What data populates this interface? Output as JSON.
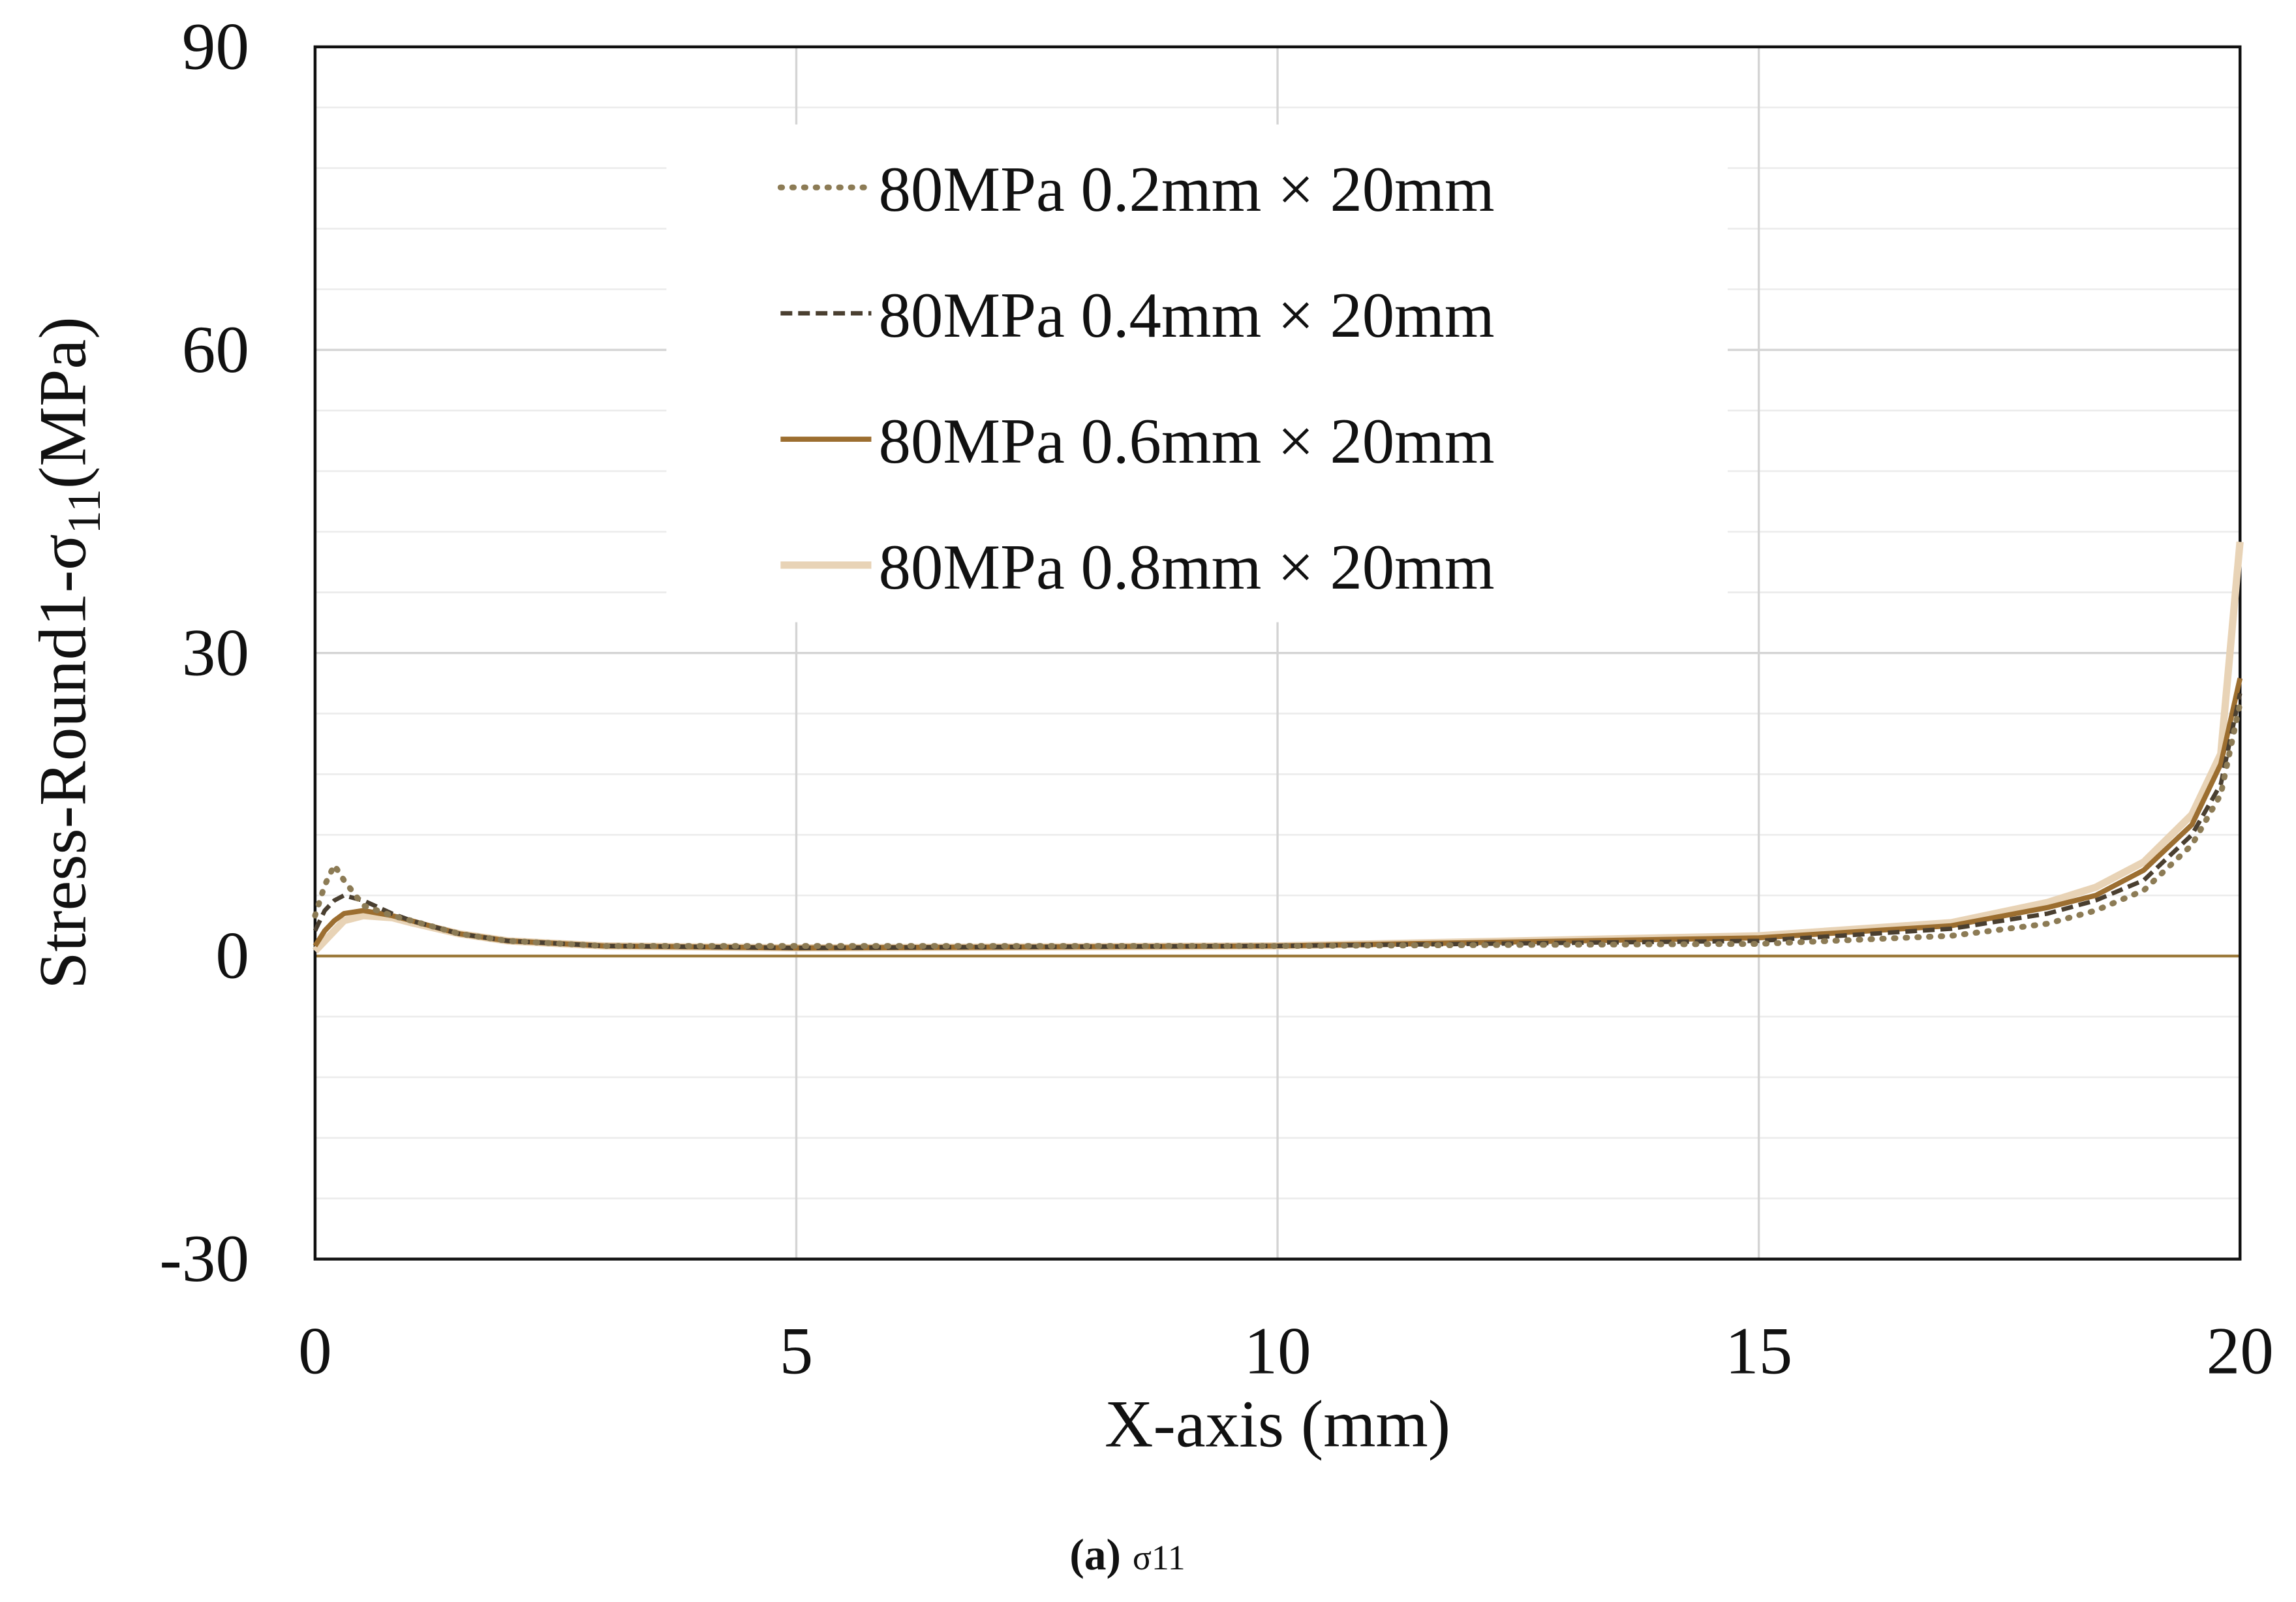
{
  "chart_data": {
    "type": "line",
    "y_label": {
      "prefix": "Stress-Round1-σ",
      "subscript": "11",
      "suffix": "(MPa)"
    },
    "x_label": "X-axis (mm)",
    "caption": {
      "tag": "(a)",
      "text": "σ11"
    },
    "x": [
      0,
      0.1,
      0.2,
      0.3,
      0.5,
      0.8,
      1,
      1.5,
      2,
      3,
      5,
      10,
      15,
      17,
      18,
      18.5,
      19,
      19.5,
      19.8,
      20
    ],
    "series": [
      {
        "name": "80MPa 0.2mm × 20mm",
        "color": "#8c7b55",
        "style": "dotted",
        "values": [
          4,
          7,
          9,
          7.5,
          5,
          4,
          3.5,
          2.2,
          1.5,
          1,
          1,
          1,
          1.2,
          2,
          3.2,
          4.5,
          6.5,
          11,
          16,
          25
        ]
      },
      {
        "name": "80MPa 0.4mm × 20mm",
        "color": "#4a3f30",
        "style": "dashed",
        "values": [
          2.5,
          4.5,
          5.5,
          6,
          5.5,
          4.2,
          3.5,
          2.2,
          1.5,
          1,
          0.8,
          1,
          1.5,
          2.7,
          4.2,
          5.5,
          7.5,
          12,
          17,
          26
        ]
      },
      {
        "name": "80MPa 0.6mm × 20mm",
        "color": "#9c6e30",
        "style": "solid",
        "values": [
          1,
          2.5,
          3.5,
          4.2,
          4.5,
          4,
          3.5,
          2.2,
          1.5,
          1,
          0.8,
          1,
          1.8,
          3,
          4.8,
          6,
          8.5,
          13,
          19,
          27.5
        ]
      },
      {
        "name": "80MPa 0.8mm × 20mm",
        "color": "#e8d3b6",
        "style": "thick",
        "values": [
          0.5,
          1.5,
          2.5,
          3.5,
          4,
          3.8,
          3.3,
          2.2,
          1.5,
          1,
          0.8,
          1,
          2,
          3.3,
          5.3,
          6.8,
          9.3,
          14,
          20,
          41
        ]
      }
    ],
    "xlim": [
      0,
      20
    ],
    "xticks": [
      0,
      5,
      10,
      15,
      20
    ],
    "ylim": [
      -30,
      90
    ],
    "yticks": [
      -30,
      0,
      30,
      60,
      90
    ],
    "yminorticks": [
      -24,
      -18,
      -12,
      -6,
      6,
      12,
      18,
      24,
      36,
      42,
      48,
      54,
      66,
      72,
      78,
      84
    ],
    "zero_line_color": "#9c7a3c",
    "grid": true
  }
}
